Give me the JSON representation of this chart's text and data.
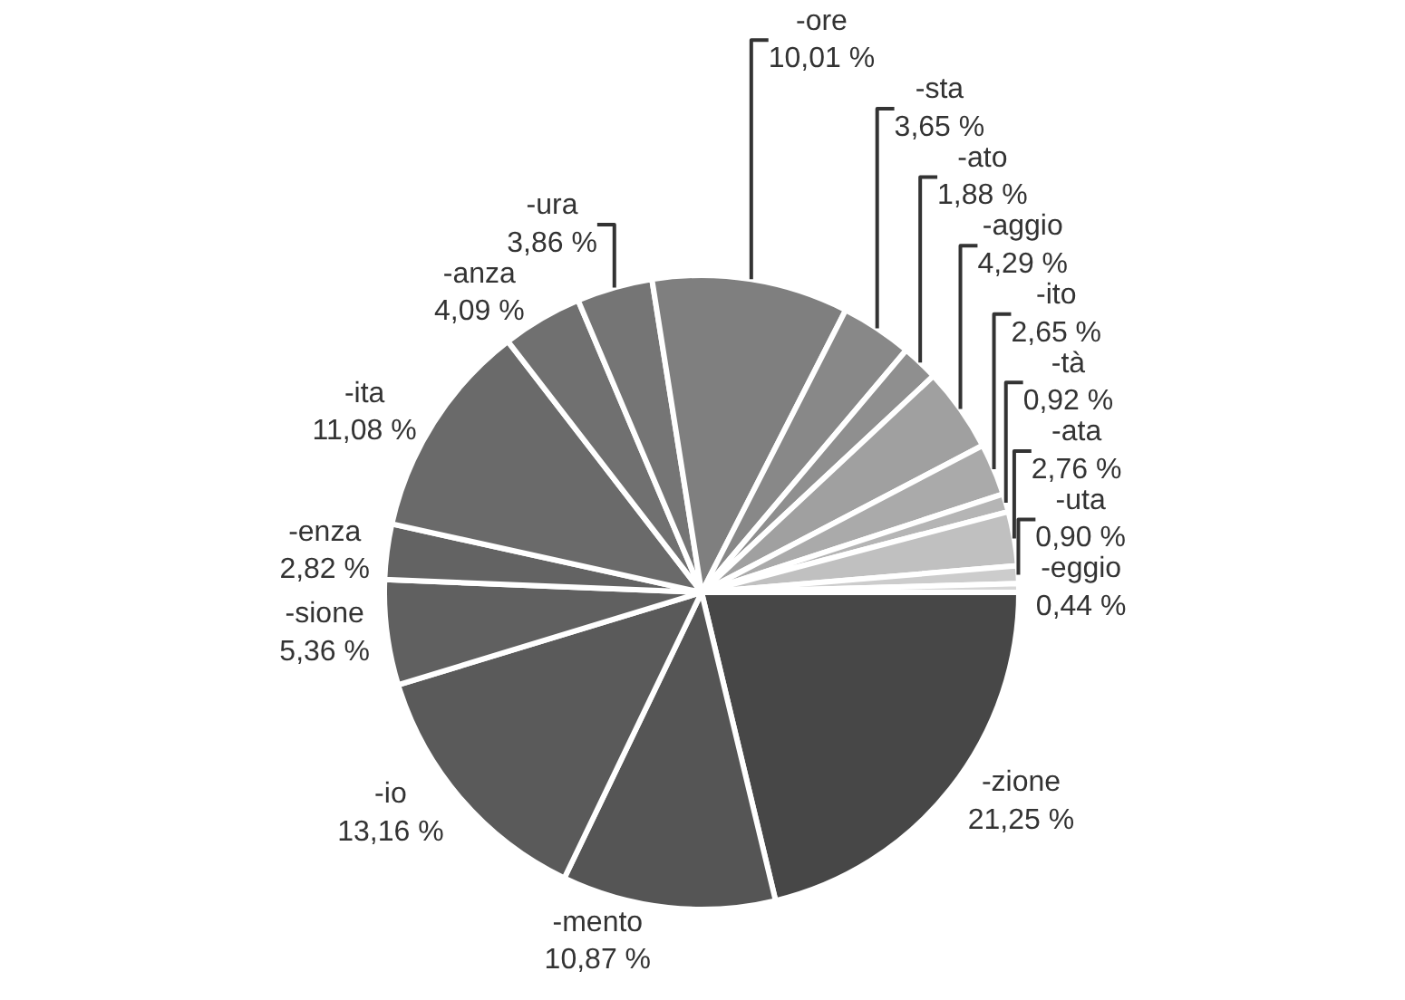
{
  "chart_data": {
    "type": "pie",
    "categories": [
      "-zione",
      "-mento",
      "-io",
      "-sione",
      "-enza",
      "-ita",
      "-anza",
      "-ura",
      "-ore",
      "-sta",
      "-ato",
      "-aggio",
      "-ito",
      "-tà",
      "-ata",
      "-uta",
      "-eggio"
    ],
    "values": [
      21.25,
      10.87,
      13.16,
      5.36,
      2.82,
      11.08,
      4.09,
      3.86,
      10.01,
      3.65,
      1.88,
      4.29,
      2.65,
      0.92,
      2.76,
      0.9,
      0.44
    ],
    "value_labels": [
      "21,25 %",
      "10,87 %",
      "13,16 %",
      "5,36 %",
      "2,82 %",
      "11,08 %",
      "4,09 %",
      "3,86 %",
      "10,01 %",
      "3,65 %",
      "1,88 %",
      "4,29 %",
      "2,65 %",
      "0,92 %",
      "2,76 %",
      "0,90 %",
      "0,44 %"
    ],
    "colors": [
      "#474747",
      "#555555",
      "#5a5a5a",
      "#606060",
      "#636363",
      "#6a6a6a",
      "#707070",
      "#757575",
      "#7f7f7f",
      "#888888",
      "#8f8f8f",
      "#a0a0a0",
      "#aaaaaa",
      "#b5b5b5",
      "#c0c0c0",
      "#cccccc",
      "#d6d6d6"
    ],
    "legend": false
  }
}
